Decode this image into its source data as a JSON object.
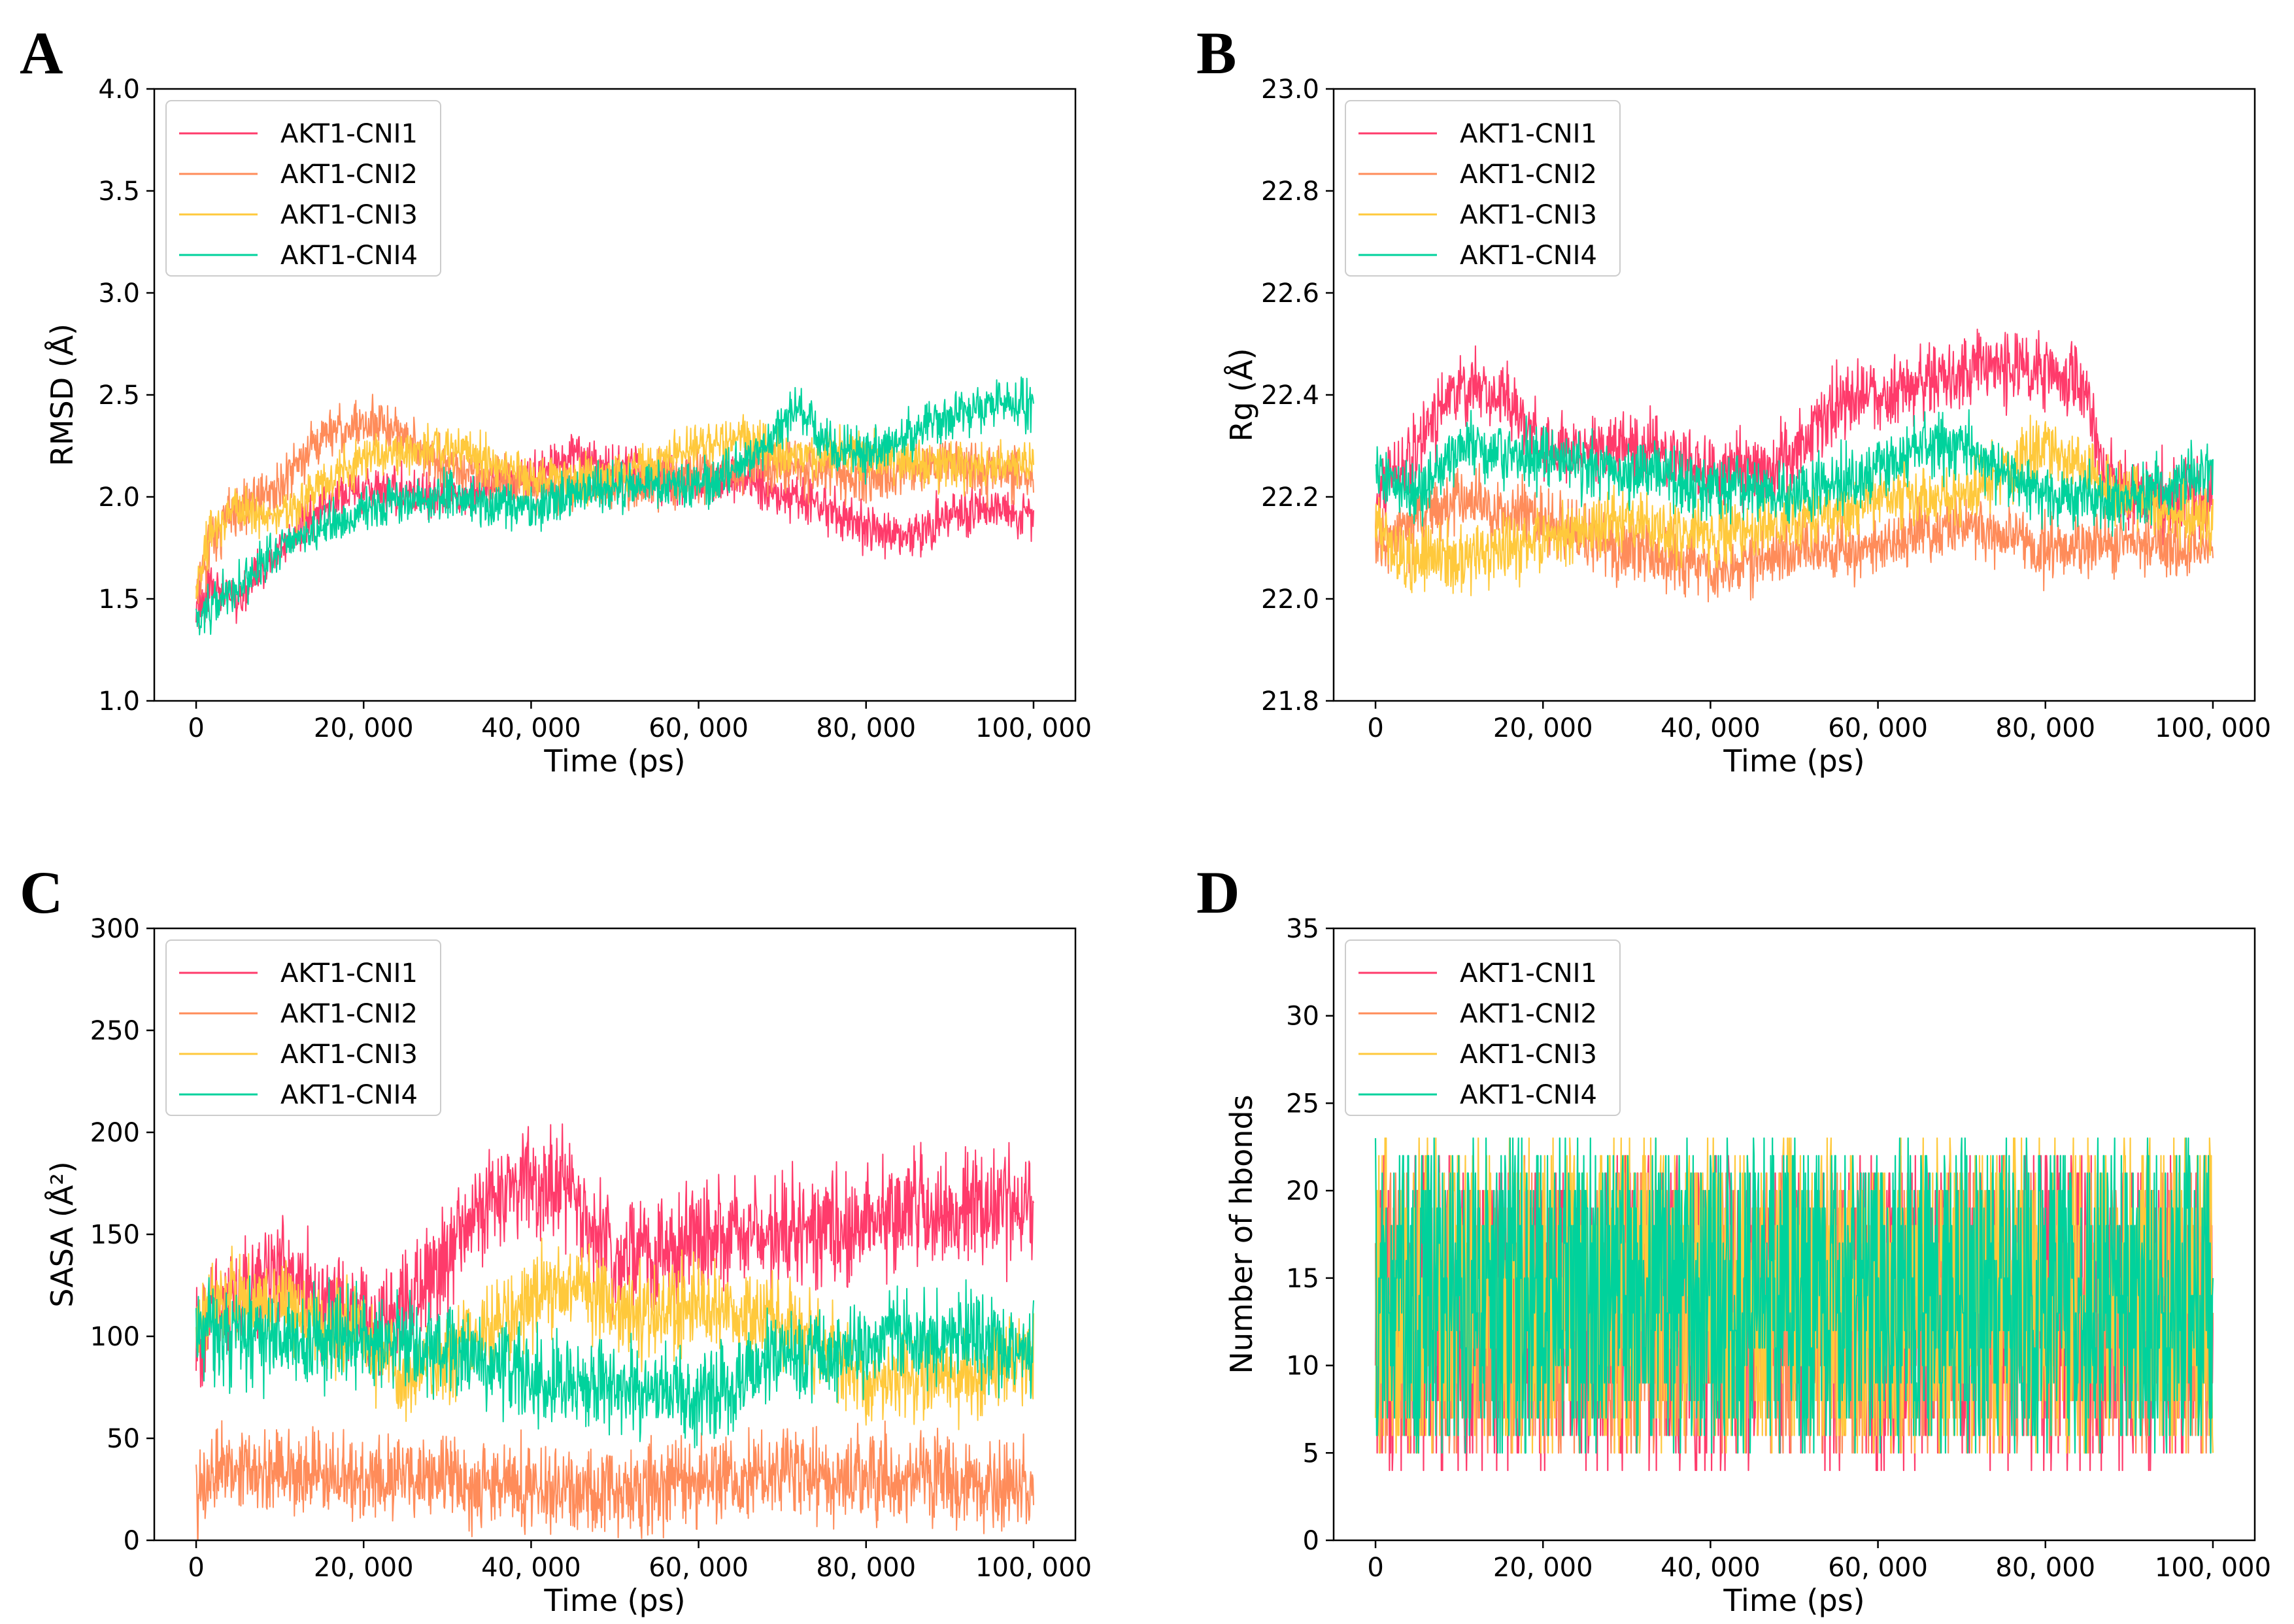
{
  "chart_data": [
    {
      "panel": "A",
      "type": "line",
      "xlabel": "Time (ps)",
      "ylabel": "RMSD (Å)",
      "xlim": [
        -5000,
        105000
      ],
      "ylim": [
        1.0,
        4.0
      ],
      "xticks": [
        0,
        20000,
        40000,
        60000,
        80000,
        100000
      ],
      "xtick_labels": [
        "0",
        "20, 000",
        "40, 000",
        "60, 000",
        "80, 000",
        "100, 000"
      ],
      "yticks": [
        1.0,
        1.5,
        2.0,
        2.5,
        3.0,
        3.5,
        4.0
      ],
      "ytick_labels": [
        "1.0",
        "1.5",
        "2.0",
        "2.5",
        "3.0",
        "3.5",
        "4.0"
      ],
      "legend_position": "top-left",
      "noise": "band",
      "series": [
        {
          "name": "AKT1-CNI1",
          "color": "#ff3b6b",
          "amp": 0.08,
          "x": [
            0,
            2000,
            5000,
            10000,
            15000,
            20000,
            30000,
            40000,
            45000,
            50000,
            60000,
            65000,
            70000,
            75000,
            80000,
            85000,
            90000,
            95000,
            100000
          ],
          "y": [
            1.45,
            1.55,
            1.5,
            1.75,
            1.95,
            2.05,
            2.0,
            2.1,
            2.2,
            2.15,
            2.05,
            2.1,
            2.0,
            1.95,
            1.85,
            1.8,
            1.9,
            1.95,
            1.9
          ]
        },
        {
          "name": "AKT1-CNI2",
          "color": "#ff8c5a",
          "amp": 0.09,
          "x": [
            0,
            2000,
            5000,
            10000,
            15000,
            20000,
            25000,
            30000,
            40000,
            50000,
            60000,
            70000,
            80000,
            90000,
            100000
          ],
          "y": [
            1.5,
            1.8,
            1.95,
            2.05,
            2.3,
            2.35,
            2.3,
            2.15,
            2.05,
            2.05,
            2.1,
            2.15,
            2.1,
            2.15,
            2.1
          ]
        },
        {
          "name": "AKT1-CNI3",
          "color": "#ffc93c",
          "amp": 0.08,
          "x": [
            0,
            2000,
            5000,
            10000,
            20000,
            30000,
            40000,
            50000,
            60000,
            65000,
            70000,
            80000,
            90000,
            100000
          ],
          "y": [
            1.55,
            1.85,
            1.95,
            1.9,
            2.2,
            2.25,
            2.1,
            2.1,
            2.25,
            2.3,
            2.2,
            2.2,
            2.15,
            2.15
          ]
        },
        {
          "name": "AKT1-CNI4",
          "color": "#00d29c",
          "amp": 0.08,
          "x": [
            0,
            3000,
            6000,
            10000,
            15000,
            20000,
            30000,
            40000,
            50000,
            60000,
            65000,
            70000,
            72000,
            75000,
            80000,
            85000,
            90000,
            95000,
            100000
          ],
          "y": [
            1.4,
            1.5,
            1.6,
            1.75,
            1.85,
            1.95,
            2.0,
            1.95,
            2.05,
            2.05,
            2.15,
            2.35,
            2.45,
            2.25,
            2.2,
            2.3,
            2.4,
            2.45,
            2.45
          ]
        }
      ]
    },
    {
      "panel": "B",
      "type": "line",
      "xlabel": "Time (ps)",
      "ylabel": "Rg (Å)",
      "xlim": [
        -5000,
        105000
      ],
      "ylim": [
        21.8,
        23.0
      ],
      "xticks": [
        0,
        20000,
        40000,
        60000,
        80000,
        100000
      ],
      "xtick_labels": [
        "0",
        "20, 000",
        "40, 000",
        "60, 000",
        "80, 000",
        "100, 000"
      ],
      "yticks": [
        21.8,
        22.0,
        22.2,
        22.4,
        22.6,
        22.8,
        23.0
      ],
      "ytick_labels": [
        "21.8",
        "22.0",
        "22.2",
        "22.4",
        "22.6",
        "22.8",
        "23.0"
      ],
      "legend_position": "top-left",
      "noise": "band",
      "series": [
        {
          "name": "AKT1-CNI1",
          "color": "#ff3b6b",
          "amp": 0.05,
          "x": [
            0,
            5000,
            10000,
            15000,
            20000,
            30000,
            40000,
            50000,
            55000,
            60000,
            70000,
            75000,
            80000,
            85000,
            87000,
            90000,
            95000,
            100000
          ],
          "y": [
            22.2,
            22.3,
            22.42,
            22.4,
            22.3,
            22.3,
            22.25,
            22.28,
            22.38,
            22.4,
            22.45,
            22.45,
            22.45,
            22.42,
            22.25,
            22.2,
            22.2,
            22.2
          ]
        },
        {
          "name": "AKT1-CNI2",
          "color": "#ff8c5a",
          "amp": 0.045,
          "x": [
            0,
            5000,
            10000,
            20000,
            30000,
            40000,
            50000,
            60000,
            70000,
            80000,
            90000,
            100000
          ],
          "y": [
            22.1,
            22.15,
            22.2,
            22.15,
            22.1,
            22.05,
            22.1,
            22.1,
            22.15,
            22.1,
            22.1,
            22.1
          ]
        },
        {
          "name": "AKT1-CNI3",
          "color": "#ffc93c",
          "amp": 0.045,
          "x": [
            0,
            3000,
            10000,
            15000,
            20000,
            30000,
            40000,
            50000,
            60000,
            70000,
            80000,
            90000,
            100000
          ],
          "y": [
            22.15,
            22.08,
            22.08,
            22.1,
            22.12,
            22.15,
            22.12,
            22.15,
            22.2,
            22.2,
            22.3,
            22.2,
            22.15
          ]
        },
        {
          "name": "AKT1-CNI4",
          "color": "#00d29c",
          "amp": 0.045,
          "x": [
            0,
            5000,
            10000,
            20000,
            30000,
            40000,
            50000,
            60000,
            65000,
            70000,
            75000,
            80000,
            90000,
            100000
          ],
          "y": [
            22.25,
            22.2,
            22.3,
            22.28,
            22.25,
            22.22,
            22.2,
            22.25,
            22.3,
            22.3,
            22.25,
            22.2,
            22.2,
            22.25
          ]
        }
      ]
    },
    {
      "panel": "C",
      "type": "line",
      "xlabel": "Time (ps)",
      "ylabel": "SASA (Å²)",
      "xlim": [
        -5000,
        105000
      ],
      "ylim": [
        0,
        300
      ],
      "xticks": [
        0,
        20000,
        40000,
        60000,
        80000,
        100000
      ],
      "xtick_labels": [
        "0",
        "20, 000",
        "40, 000",
        "60, 000",
        "80, 000",
        "100, 000"
      ],
      "yticks": [
        0,
        50,
        100,
        150,
        200,
        250,
        300
      ],
      "ytick_labels": [
        "0",
        "50",
        "100",
        "150",
        "200",
        "250",
        "300"
      ],
      "legend_position": "top-left",
      "noise": "band",
      "series": [
        {
          "name": "AKT1-CNI1",
          "color": "#ff3b6b",
          "amp": 20,
          "x": [
            0,
            5000,
            10000,
            15000,
            20000,
            25000,
            30000,
            35000,
            40000,
            45000,
            50000,
            55000,
            60000,
            70000,
            80000,
            85000,
            90000,
            95000,
            100000
          ],
          "y": [
            100,
            120,
            135,
            115,
            110,
            115,
            140,
            170,
            175,
            170,
            140,
            145,
            150,
            150,
            155,
            165,
            160,
            165,
            160
          ]
        },
        {
          "name": "AKT1-CNI2",
          "color": "#ff8c5a",
          "amp": 15,
          "x": [
            0,
            2000,
            10000,
            20000,
            30000,
            40000,
            50000,
            60000,
            70000,
            80000,
            90000,
            100000
          ],
          "y": [
            20,
            35,
            35,
            30,
            30,
            25,
            25,
            28,
            30,
            30,
            30,
            25
          ]
        },
        {
          "name": "AKT1-CNI3",
          "color": "#ffc93c",
          "amp": 15,
          "x": [
            0,
            5000,
            10000,
            20000,
            25000,
            30000,
            40000,
            45000,
            50000,
            60000,
            70000,
            80000,
            90000,
            100000
          ],
          "y": [
            110,
            120,
            115,
            100,
            80,
            90,
            120,
            125,
            110,
            115,
            110,
            80,
            80,
            90
          ]
        },
        {
          "name": "AKT1-CNI4",
          "color": "#00d29c",
          "amp": 16,
          "x": [
            0,
            5000,
            10000,
            20000,
            30000,
            40000,
            50000,
            60000,
            70000,
            80000,
            85000,
            90000,
            100000
          ],
          "y": [
            105,
            100,
            100,
            100,
            95,
            80,
            75,
            70,
            90,
            95,
            100,
            100,
            95
          ]
        }
      ]
    },
    {
      "panel": "D",
      "type": "line",
      "xlabel": "Time (ps)",
      "ylabel": "Number of hbonds",
      "xlim": [
        -5000,
        105000
      ],
      "ylim": [
        0,
        35
      ],
      "xticks": [
        0,
        20000,
        40000,
        60000,
        80000,
        100000
      ],
      "xtick_labels": [
        "0",
        "20, 000",
        "40, 000",
        "60, 000",
        "80, 000",
        "100, 000"
      ],
      "yticks": [
        0,
        5,
        10,
        15,
        20,
        25,
        30,
        35
      ],
      "ytick_labels": [
        "0",
        "5",
        "10",
        "15",
        "20",
        "25",
        "30",
        "35"
      ],
      "legend_position": "top-left",
      "noise": "integer",
      "series": [
        {
          "name": "AKT1-CNI1",
          "color": "#ff3b6b",
          "low": 4,
          "high": 23,
          "x": [
            0,
            100000
          ],
          "y": [
            13,
            13
          ]
        },
        {
          "name": "AKT1-CNI2",
          "color": "#ff8c5a",
          "low": 5,
          "high": 22,
          "x": [
            0,
            100000
          ],
          "y": [
            13,
            13
          ]
        },
        {
          "name": "AKT1-CNI3",
          "color": "#ffc93c",
          "low": 5,
          "high": 24,
          "x": [
            0,
            100000
          ],
          "y": [
            14,
            14
          ]
        },
        {
          "name": "AKT1-CNI4",
          "color": "#00d29c",
          "low": 5,
          "high": 24,
          "x": [
            0,
            100000
          ],
          "y": [
            14,
            14
          ]
        }
      ]
    }
  ]
}
